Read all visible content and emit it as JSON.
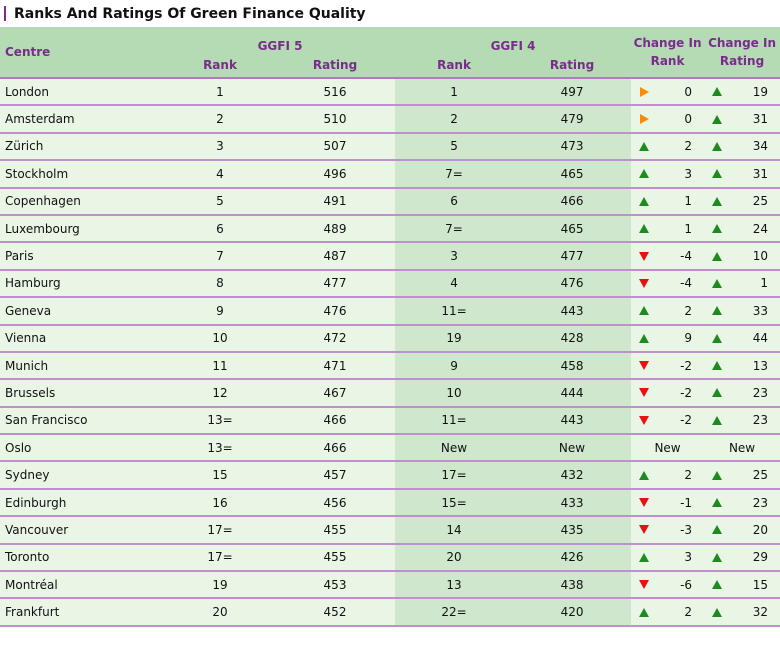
{
  "title": "Ranks And Ratings Of Green Finance Quality",
  "headers": {
    "centre": "Centre",
    "ggfi5": "GGFI 5",
    "ggfi4": "GGFI 4",
    "rank": "Rank",
    "rating": "Rating",
    "change_rank": "Change In Rank",
    "change_rating": "Change In Rating"
  },
  "colors": {
    "header_bg": "#b5dbb5",
    "header_text": "#7a2c8c",
    "row_bg": "#e9f6e6",
    "ggfi4_bg": "#cfe8cd",
    "row_divider": "#c08fcd",
    "up": "#1f8a1f",
    "down": "#e81010",
    "unchanged": "#ff8a00"
  },
  "rows": [
    {
      "centre": "London",
      "rank5": "1",
      "rating5": "516",
      "rank4": "1",
      "rating4": "497",
      "chg_rank": "0",
      "chg_rank_dir": "right",
      "chg_rating": "19",
      "chg_rating_dir": "up"
    },
    {
      "centre": "Amsterdam",
      "rank5": "2",
      "rating5": "510",
      "rank4": "2",
      "rating4": "479",
      "chg_rank": "0",
      "chg_rank_dir": "right",
      "chg_rating": "31",
      "chg_rating_dir": "up"
    },
    {
      "centre": "Zürich",
      "rank5": "3",
      "rating5": "507",
      "rank4": "5",
      "rating4": "473",
      "chg_rank": "2",
      "chg_rank_dir": "up",
      "chg_rating": "34",
      "chg_rating_dir": "up"
    },
    {
      "centre": "Stockholm",
      "rank5": "4",
      "rating5": "496",
      "rank4": "7=",
      "rating4": "465",
      "chg_rank": "3",
      "chg_rank_dir": "up",
      "chg_rating": "31",
      "chg_rating_dir": "up"
    },
    {
      "centre": "Copenhagen",
      "rank5": "5",
      "rating5": "491",
      "rank4": "6",
      "rating4": "466",
      "chg_rank": "1",
      "chg_rank_dir": "up",
      "chg_rating": "25",
      "chg_rating_dir": "up"
    },
    {
      "centre": "Luxembourg",
      "rank5": "6",
      "rating5": "489",
      "rank4": "7=",
      "rating4": "465",
      "chg_rank": "1",
      "chg_rank_dir": "up",
      "chg_rating": "24",
      "chg_rating_dir": "up"
    },
    {
      "centre": "Paris",
      "rank5": "7",
      "rating5": "487",
      "rank4": "3",
      "rating4": "477",
      "chg_rank": "-4",
      "chg_rank_dir": "down",
      "chg_rating": "10",
      "chg_rating_dir": "up"
    },
    {
      "centre": "Hamburg",
      "rank5": "8",
      "rating5": "477",
      "rank4": "4",
      "rating4": "476",
      "chg_rank": "-4",
      "chg_rank_dir": "down",
      "chg_rating": "1",
      "chg_rating_dir": "up"
    },
    {
      "centre": "Geneva",
      "rank5": "9",
      "rating5": "476",
      "rank4": "11=",
      "rating4": "443",
      "chg_rank": "2",
      "chg_rank_dir": "up",
      "chg_rating": "33",
      "chg_rating_dir": "up"
    },
    {
      "centre": "Vienna",
      "rank5": "10",
      "rating5": "472",
      "rank4": "19",
      "rating4": "428",
      "chg_rank": "9",
      "chg_rank_dir": "up",
      "chg_rating": "44",
      "chg_rating_dir": "up"
    },
    {
      "centre": "Munich",
      "rank5": "11",
      "rating5": "471",
      "rank4": "9",
      "rating4": "458",
      "chg_rank": "-2",
      "chg_rank_dir": "down",
      "chg_rating": "13",
      "chg_rating_dir": "up"
    },
    {
      "centre": "Brussels",
      "rank5": "12",
      "rating5": "467",
      "rank4": "10",
      "rating4": "444",
      "chg_rank": "-2",
      "chg_rank_dir": "down",
      "chg_rating": "23",
      "chg_rating_dir": "up"
    },
    {
      "centre": "San Francisco",
      "rank5": "13=",
      "rating5": "466",
      "rank4": "11=",
      "rating4": "443",
      "chg_rank": "-2",
      "chg_rank_dir": "down",
      "chg_rating": "23",
      "chg_rating_dir": "up"
    },
    {
      "centre": "Oslo",
      "rank5": "13=",
      "rating5": "466",
      "rank4": "New",
      "rating4": "New",
      "chg_rank": "New",
      "chg_rank_dir": "none",
      "chg_rating": "New",
      "chg_rating_dir": "none"
    },
    {
      "centre": "Sydney",
      "rank5": "15",
      "rating5": "457",
      "rank4": "17=",
      "rating4": "432",
      "chg_rank": "2",
      "chg_rank_dir": "up",
      "chg_rating": "25",
      "chg_rating_dir": "up"
    },
    {
      "centre": "Edinburgh",
      "rank5": "16",
      "rating5": "456",
      "rank4": "15=",
      "rating4": "433",
      "chg_rank": "-1",
      "chg_rank_dir": "down",
      "chg_rating": "23",
      "chg_rating_dir": "up"
    },
    {
      "centre": "Vancouver",
      "rank5": "17=",
      "rating5": "455",
      "rank4": "14",
      "rating4": "435",
      "chg_rank": "-3",
      "chg_rank_dir": "down",
      "chg_rating": "20",
      "chg_rating_dir": "up"
    },
    {
      "centre": "Toronto",
      "rank5": "17=",
      "rating5": "455",
      "rank4": "20",
      "rating4": "426",
      "chg_rank": "3",
      "chg_rank_dir": "up",
      "chg_rating": "29",
      "chg_rating_dir": "up"
    },
    {
      "centre": "Montréal",
      "rank5": "19",
      "rating5": "453",
      "rank4": "13",
      "rating4": "438",
      "chg_rank": "-6",
      "chg_rank_dir": "down",
      "chg_rating": "15",
      "chg_rating_dir": "up"
    },
    {
      "centre": "Frankfurt",
      "rank5": "20",
      "rating5": "452",
      "rank4": "22=",
      "rating4": "420",
      "chg_rank": "2",
      "chg_rank_dir": "up",
      "chg_rating": "32",
      "chg_rating_dir": "up"
    }
  ]
}
